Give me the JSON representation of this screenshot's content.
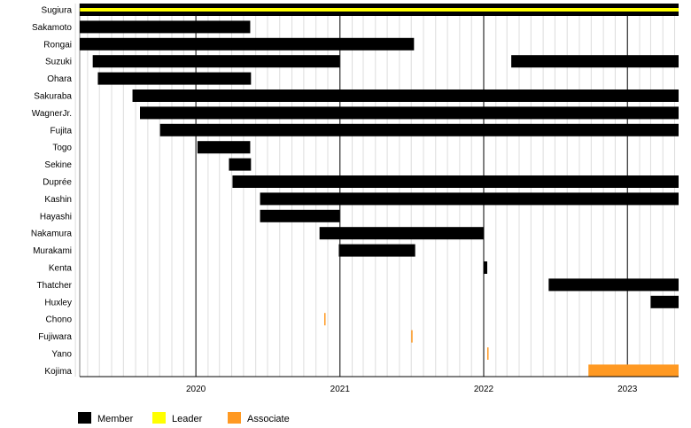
{
  "chart_data": {
    "type": "timeline",
    "x_axis": {
      "ticks": [
        "2020",
        "2021",
        "2022",
        "2023"
      ],
      "range": [
        "2019-03-12",
        "2023-05-11"
      ]
    },
    "colors": {
      "Member": "#000000",
      "Leader": "#ffff00",
      "Associate": "#ff9922"
    },
    "legend": {
      "placement": "bottom-left",
      "entries": [
        {
          "name": "Member",
          "color": "#000000"
        },
        {
          "name": "Leader",
          "color": "#ffff00"
        },
        {
          "name": "Associate",
          "color": "#ff9922"
        }
      ]
    },
    "members": [
      {
        "name": "Sugiura",
        "periods": [
          {
            "role": "Member",
            "start": "2019-03-12",
            "end": "2023-05-11"
          },
          {
            "role": "Leader",
            "start": "2019-03-12",
            "end": "2023-05-11"
          }
        ]
      },
      {
        "name": "Sakamoto",
        "periods": [
          {
            "role": "Member",
            "start": "2019-03-12",
            "end": "2020-05-18"
          }
        ]
      },
      {
        "name": "Rongai",
        "periods": [
          {
            "role": "Member",
            "start": "2019-03-12",
            "end": "2021-07-08"
          }
        ]
      },
      {
        "name": "Suzuki",
        "periods": [
          {
            "role": "Member",
            "start": "2019-04-14",
            "end": "2020-12-31"
          },
          {
            "role": "Member",
            "start": "2022-03-12",
            "end": "2023-05-11"
          }
        ]
      },
      {
        "name": "Ohara",
        "periods": [
          {
            "role": "Member",
            "start": "2019-04-27",
            "end": "2020-05-20"
          }
        ]
      },
      {
        "name": "Sakuraba",
        "periods": [
          {
            "role": "Member",
            "start": "2019-07-24",
            "end": "2023-05-11"
          }
        ]
      },
      {
        "name": "WagnerJr.",
        "periods": [
          {
            "role": "Member",
            "start": "2019-08-12",
            "end": "2023-05-11"
          }
        ]
      },
      {
        "name": "Fujita",
        "periods": [
          {
            "role": "Member",
            "start": "2019-10-02",
            "end": "2023-05-11"
          }
        ]
      },
      {
        "name": "Togo",
        "periods": [
          {
            "role": "Member",
            "start": "2020-01-05",
            "end": "2020-05-18"
          }
        ]
      },
      {
        "name": "Sekine",
        "periods": [
          {
            "role": "Member",
            "start": "2020-03-25",
            "end": "2020-05-20"
          }
        ]
      },
      {
        "name": "Duprée",
        "periods": [
          {
            "role": "Member",
            "start": "2020-04-03",
            "end": "2023-05-11"
          }
        ]
      },
      {
        "name": "Kashin",
        "periods": [
          {
            "role": "Member",
            "start": "2020-06-12",
            "end": "2023-05-11"
          }
        ]
      },
      {
        "name": "Hayashi",
        "periods": [
          {
            "role": "Member",
            "start": "2020-06-12",
            "end": "2020-12-31"
          }
        ]
      },
      {
        "name": "Nakamura",
        "periods": [
          {
            "role": "Member",
            "start": "2020-11-10",
            "end": "2021-12-31"
          }
        ]
      },
      {
        "name": "Murakami",
        "periods": [
          {
            "role": "Member",
            "start": "2020-12-29",
            "end": "2021-07-11"
          }
        ]
      },
      {
        "name": "Kenta",
        "periods": [
          {
            "role": "Member",
            "start": "2021-12-31",
            "end": "2022-01-10"
          }
        ]
      },
      {
        "name": "Thatcher",
        "periods": [
          {
            "role": "Member",
            "start": "2022-06-15",
            "end": "2023-05-11"
          }
        ]
      },
      {
        "name": "Huxley",
        "periods": [
          {
            "role": "Member",
            "start": "2023-03-01",
            "end": "2023-05-11"
          }
        ]
      },
      {
        "name": "Chono",
        "periods": [
          {
            "role": "Associate",
            "start": "2020-11-22",
            "end": "2020-11-24"
          }
        ]
      },
      {
        "name": "Fujiwara",
        "periods": [
          {
            "role": "Associate",
            "start": "2021-07-01",
            "end": "2021-07-03"
          }
        ]
      },
      {
        "name": "Yano",
        "periods": [
          {
            "role": "Associate",
            "start": "2022-01-10",
            "end": "2022-01-12"
          }
        ]
      },
      {
        "name": "Kojima",
        "periods": [
          {
            "role": "Associate",
            "start": "2022-09-24",
            "end": "2023-05-11"
          }
        ]
      }
    ]
  }
}
